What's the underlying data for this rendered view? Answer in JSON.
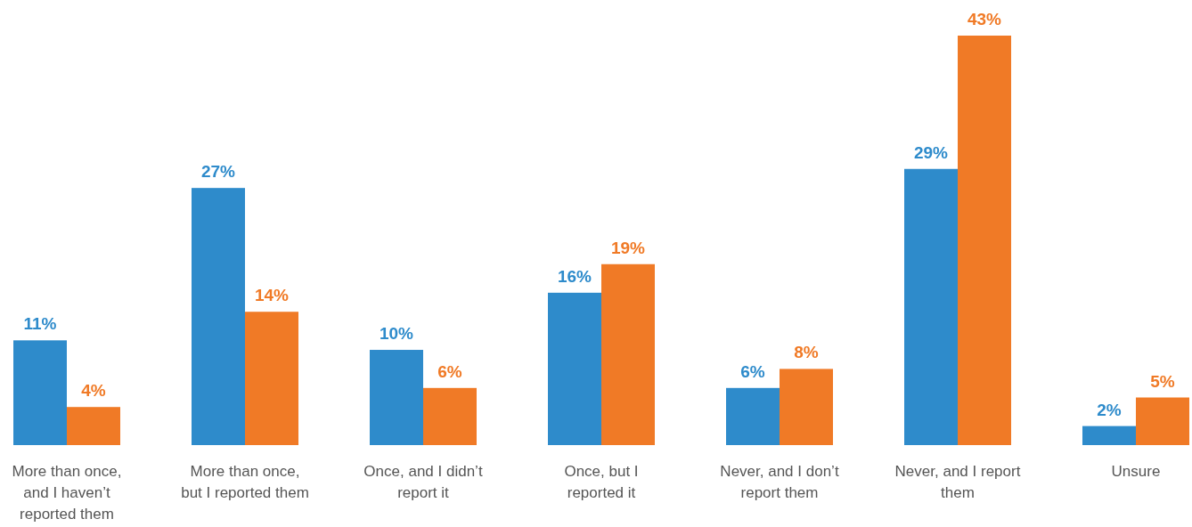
{
  "chart_data": {
    "type": "bar",
    "categories": [
      "More than once, and I haven’t reported them",
      "More than once, but I reported them",
      "Once, and I didn’t report it",
      "Once, but I reported it",
      "Never, and I don’t report them",
      "Never, and I report them",
      "Unsure"
    ],
    "series": [
      {
        "color": "#2e8bcb",
        "values": [
          11,
          27,
          10,
          16,
          6,
          29,
          2
        ],
        "value_labels": [
          "11%",
          "27%",
          "10%",
          "16%",
          "6%",
          "29%",
          "2%"
        ]
      },
      {
        "color": "#f07a26",
        "values": [
          4,
          14,
          6,
          19,
          8,
          43,
          5
        ],
        "value_labels": [
          "4%",
          "14%",
          "6%",
          "19%",
          "8%",
          "43%",
          "5%"
        ]
      }
    ]
  }
}
